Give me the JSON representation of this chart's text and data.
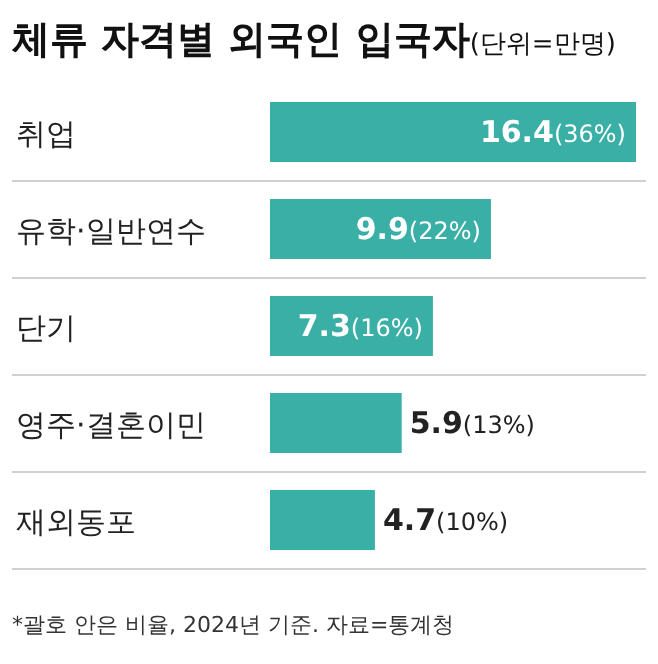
{
  "chart_data": {
    "type": "bar",
    "orientation": "horizontal",
    "title": "체류 자격별 외국인 입국자",
    "subtitle": "(단위=만명)",
    "categories": [
      "취업",
      "유학·일반연수",
      "단기",
      "영주·결혼이민",
      "재외동포"
    ],
    "values": [
      16.4,
      9.9,
      7.3,
      5.9,
      4.7
    ],
    "value_labels": [
      "**16.4**(36%)",
      "**9.9**(22%)",
      "**7.3**(16%)",
      "**5.9**(13%)",
      "**4.7**(10%)"
    ],
    "color": "#3aafa6",
    "annotations": [
      "*괄호 안은 비율, 2024년 기준. 자료=통계청"
    ]
  }
}
